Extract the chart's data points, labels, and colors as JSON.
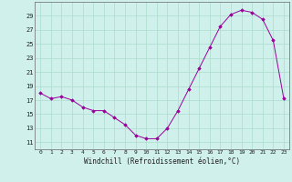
{
  "x_data": [
    0,
    1,
    2,
    3,
    4,
    5,
    6,
    7,
    8,
    9,
    10,
    11,
    12,
    13,
    14,
    15,
    16,
    17,
    18,
    19,
    20,
    21,
    22,
    23
  ],
  "y_data": [
    18.0,
    17.2,
    17.5,
    17.0,
    16.0,
    15.5,
    15.5,
    14.5,
    13.5,
    12.0,
    11.5,
    11.5,
    13.0,
    15.5,
    18.5,
    21.5,
    24.5,
    27.5,
    29.2,
    29.8,
    29.5,
    28.5,
    25.5,
    17.2
  ],
  "line_color": "#990099",
  "marker_color": "#990099",
  "bg_color": "#cff0eb",
  "grid_color": "#aaddcc",
  "xlabel": "Windchill (Refroidissement éolien,°C)",
  "ylim": [
    10,
    31
  ],
  "xlim": [
    -0.5,
    23.5
  ],
  "yticks": [
    11,
    13,
    15,
    17,
    19,
    21,
    23,
    25,
    27,
    29
  ],
  "xticks": [
    0,
    1,
    2,
    3,
    4,
    5,
    6,
    7,
    8,
    9,
    10,
    11,
    12,
    13,
    14,
    15,
    16,
    17,
    18,
    19,
    20,
    21,
    22,
    23
  ]
}
